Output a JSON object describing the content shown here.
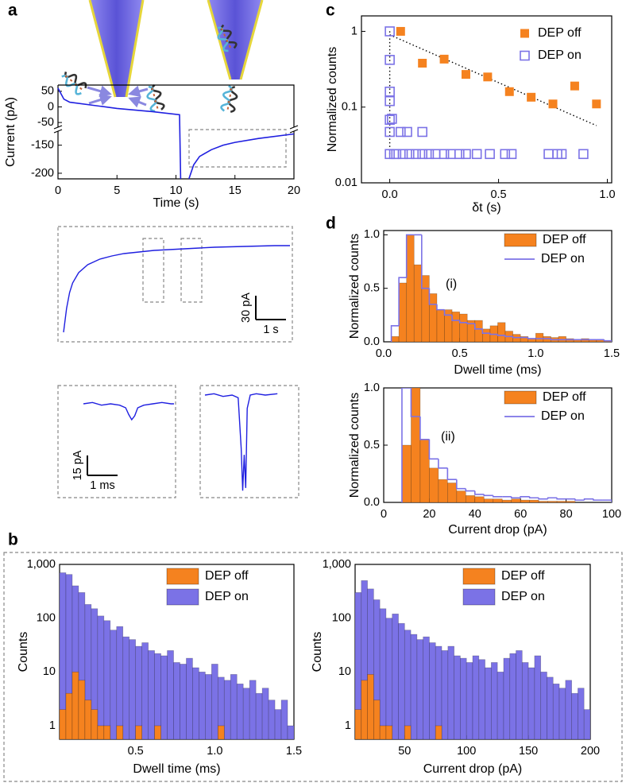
{
  "chart_data": [
    {
      "type": "line",
      "panel": "a",
      "xlabel": "Time (s)",
      "ylabel": "Current (pA)",
      "xlim": [
        0,
        20
      ],
      "xticks": [
        0,
        5,
        10,
        15,
        20
      ],
      "ylim": [
        -210,
        70
      ],
      "ybreak": [
        -125,
        -65
      ],
      "yticks": [
        50,
        0,
        -50,
        -150,
        -200
      ],
      "color": "#1f1fe0",
      "x": [
        0,
        0.5,
        1,
        3,
        5,
        8,
        10.3,
        10.4,
        10.8,
        11.1,
        11.5,
        12,
        13,
        14,
        15,
        17,
        20
      ],
      "values": [
        60,
        25,
        15,
        5,
        -5,
        -15,
        -25,
        -210,
        null,
        -210,
        -185,
        -170,
        -158,
        -150,
        -145,
        -138,
        -130
      ]
    },
    {
      "type": "trace",
      "color": "#1f1fe0",
      "x": [
        0,
        0.1,
        0.2,
        0.3,
        0.5,
        0.8,
        1.2,
        1.6,
        2.0,
        2.5,
        3,
        3.5,
        4,
        4.5,
        5,
        5.5,
        6,
        6.5,
        7,
        7.5
      ],
      "values": [
        -100,
        -70,
        -50,
        -38,
        -25,
        -15,
        -8,
        -4,
        -1,
        1,
        3,
        4,
        5,
        6,
        7,
        7.5,
        8,
        8.5,
        9,
        9
      ],
      "yscalebar": {
        "value": 30,
        "label": "30 pA"
      },
      "xscalebar": {
        "value": 1,
        "label": "1 s"
      }
    },
    {
      "type": "trace",
      "color": "#1f1fe0",
      "x": [
        0,
        0.3,
        0.6,
        0.9,
        1.2,
        1.4,
        1.5,
        1.6,
        1.7,
        1.8,
        2.0,
        2.3,
        2.6,
        2.9,
        3.0
      ],
      "values": [
        0,
        1,
        -1,
        0,
        -1,
        -3,
        -8,
        -12,
        -9,
        -3,
        -1,
        0,
        1,
        0,
        0
      ],
      "yscalebar": {
        "value": 15,
        "label": "15 pA"
      },
      "xscalebar": {
        "value": 1,
        "label": "1 ms"
      }
    },
    {
      "type": "trace",
      "color": "#1f1fe0",
      "x": [
        0,
        0.3,
        0.6,
        0.9,
        1.1,
        1.2,
        1.25,
        1.3,
        1.35,
        1.4,
        1.5,
        1.7,
        2.0,
        2.4
      ],
      "values": [
        0,
        1,
        -1,
        0,
        -2,
        -40,
        -72,
        -45,
        -70,
        -10,
        0,
        1,
        0,
        1
      ]
    },
    {
      "type": "scatter",
      "panel": "c",
      "xlabel": "δt (s)",
      "ylabel": "Normalized counts",
      "xlim": [
        -0.13,
        1.02
      ],
      "xticks": [
        {
          "value": 0,
          "label": "0.0"
        },
        0.5,
        {
          "value": 1,
          "label": "1.0"
        }
      ],
      "ylim": [
        0.01,
        1.6
      ],
      "yscale": "log",
      "yticks": [
        0.01,
        0.1,
        1
      ],
      "legend": "upper right",
      "series": [
        {
          "name": "DEP off",
          "color": "#f5821f",
          "marker": "filled",
          "x": [
            0.05,
            0.15,
            0.25,
            0.35,
            0.45,
            0.55,
            0.65,
            0.75,
            0.85,
            0.95
          ],
          "values": [
            1.0,
            0.38,
            0.43,
            0.27,
            0.25,
            0.16,
            0.135,
            0.11,
            0.19,
            0.11
          ]
        },
        {
          "name": "DEP on",
          "color": "#7b72e6",
          "marker": "open",
          "x": [
            0,
            0,
            0,
            0,
            0,
            0,
            0,
            0.02,
            0.01,
            0.05,
            0.08,
            0.15,
            0.03,
            0.06,
            0.09,
            0.12,
            0.15,
            0.18,
            0.21,
            0.25,
            0.28,
            0.32,
            0.35,
            0.4,
            0.46,
            0.53,
            0.56,
            0.73,
            0.77,
            0.79,
            0.89
          ],
          "values": [
            1,
            0.42,
            0.16,
            0.12,
            0.068,
            0.047,
            0.024,
            0.024,
            0.07,
            0.047,
            0.047,
            0.047,
            0.024,
            0.024,
            0.024,
            0.024,
            0.024,
            0.024,
            0.024,
            0.024,
            0.024,
            0.024,
            0.024,
            0.024,
            0.024,
            0.024,
            0.024,
            0.024,
            0.024,
            0.024,
            0.024
          ]
        }
      ],
      "fit_lines": [
        {
          "x": [
            0,
            0.95
          ],
          "values": [
            0.9,
            0.057
          ]
        },
        {
          "x": [
            0,
            0
          ],
          "values": [
            1,
            0.024
          ]
        }
      ]
    },
    {
      "type": "histogram",
      "panel": "d",
      "annotation": "(i)",
      "xlabel": "Dwell time (ms)",
      "ylabel": "Normalized counts",
      "xlim": [
        0,
        1.5
      ],
      "xticks": [
        {
          "value": 0,
          "label": "0.0"
        },
        0.5,
        {
          "value": 1,
          "label": "1.0"
        },
        1.5
      ],
      "ylim": [
        0,
        1.04
      ],
      "yticks": [
        {
          "value": 0,
          "label": "0.0"
        },
        0.5,
        {
          "value": 1,
          "label": "1.0"
        }
      ],
      "legend": "upper right",
      "bins": [
        0.05,
        0.1,
        0.15,
        0.2,
        0.25,
        0.3,
        0.35,
        0.4,
        0.45,
        0.5,
        0.55,
        0.6,
        0.65,
        0.7,
        0.75,
        0.8,
        0.85,
        0.9,
        0.95,
        1.0,
        1.05,
        1.1,
        1.15,
        1.2,
        1.25,
        1.3,
        1.35,
        1.4,
        1.45,
        1.5
      ],
      "series": [
        {
          "name": "DEP off",
          "color": "#f5821f",
          "style": "bar",
          "values": [
            0.05,
            0.55,
            1.0,
            0.72,
            0.62,
            0.45,
            0.3,
            0.3,
            0.28,
            0.26,
            0.2,
            0.2,
            0.12,
            0.15,
            0.18,
            0.1,
            0.07,
            0.05,
            0.03,
            0.08,
            0.05,
            0.04,
            0.05,
            0.03,
            0.02,
            0.03,
            0.02,
            0.02,
            0.01
          ]
        },
        {
          "name": "DEP on",
          "color": "#7b72e6",
          "style": "step",
          "values": [
            0.15,
            0.6,
            1.0,
            1.0,
            0.5,
            0.35,
            0.3,
            0.25,
            0.2,
            0.18,
            0.17,
            0.12,
            0.08,
            0.07,
            0.06,
            0.05,
            0.04,
            0.04,
            0.03,
            0.03,
            0.03,
            0.02,
            0.02,
            0.02,
            0.02,
            0.02,
            0.02,
            0.02,
            0.01
          ]
        }
      ]
    },
    {
      "type": "histogram",
      "annotation": "(ii)",
      "xlabel": "Current drop (pA)",
      "ylabel": "Normalized counts",
      "xlim": [
        0,
        100
      ],
      "xticks": [
        0,
        20,
        40,
        60,
        80,
        100
      ],
      "ylim": [
        0,
        1
      ],
      "yticks": [
        {
          "value": 0,
          "label": "0.0"
        },
        0.5,
        {
          "value": 1,
          "label": "1.0"
        }
      ],
      "legend": "upper right",
      "bins": [
        8,
        12,
        16,
        20,
        24,
        28,
        32,
        36,
        40,
        44,
        48,
        52,
        56,
        60,
        64,
        68,
        72,
        76,
        80,
        84,
        88,
        92,
        96,
        100
      ],
      "series": [
        {
          "name": "DEP off",
          "color": "#f5821f",
          "style": "bar",
          "values": [
            0.5,
            1.0,
            0.55,
            0.3,
            0.2,
            0.17,
            0.1,
            0.06,
            0.05,
            0.03,
            0.03,
            0.02,
            0.03,
            0.02,
            0.02,
            0.01,
            0.01,
            0.01,
            0.01,
            0,
            0,
            0,
            0
          ]
        },
        {
          "name": "DEP on",
          "color": "#7b72e6",
          "style": "step",
          "values": [
            1.0,
            0.75,
            0.55,
            0.38,
            0.3,
            0.2,
            0.12,
            0.1,
            0.07,
            0.06,
            0.05,
            0.05,
            0.04,
            0.05,
            0.04,
            0.03,
            0.04,
            0.03,
            0.03,
            0.02,
            0.03,
            0.02,
            0.02
          ]
        }
      ]
    },
    {
      "type": "histogram",
      "panel": "b",
      "xlabel": "Dwell time (ms)",
      "ylabel": "Counts",
      "xlim": [
        0.02,
        1.5
      ],
      "xticks": [
        0.5,
        {
          "value": 1,
          "label": "1.0"
        },
        1.5
      ],
      "ylim": [
        0.56,
        1000
      ],
      "yscale": "log",
      "yticks": [
        1,
        10,
        100,
        {
          "value": 1000,
          "label": "1,000"
        }
      ],
      "legend": "upper right",
      "bins": [
        0.02,
        0.06,
        0.1,
        0.14,
        0.18,
        0.22,
        0.26,
        0.3,
        0.34,
        0.38,
        0.42,
        0.46,
        0.5,
        0.54,
        0.58,
        0.62,
        0.66,
        0.7,
        0.74,
        0.78,
        0.82,
        0.86,
        0.9,
        0.94,
        0.98,
        1.02,
        1.06,
        1.1,
        1.14,
        1.18,
        1.22,
        1.26,
        1.3,
        1.34,
        1.38,
        1.42,
        1.46,
        1.5
      ],
      "series": [
        {
          "name": "DEP off",
          "color": "#f5821f",
          "style": "bar",
          "values": [
            2,
            4,
            10,
            7,
            3,
            2,
            1,
            1,
            0,
            1,
            0,
            0,
            1,
            0,
            0,
            1,
            0,
            0,
            0,
            0,
            0,
            0,
            0,
            0,
            0,
            1,
            0,
            0,
            0,
            0,
            0,
            0,
            0,
            0,
            0,
            0,
            0
          ]
        },
        {
          "name": "DEP on",
          "color": "#7b72e6",
          "style": "bar",
          "values": [
            700,
            650,
            400,
            300,
            180,
            150,
            110,
            90,
            60,
            70,
            45,
            40,
            30,
            35,
            25,
            22,
            20,
            25,
            15,
            14,
            18,
            12,
            10,
            9,
            14,
            8,
            7,
            9,
            6,
            5,
            7,
            4,
            5,
            3,
            2,
            3,
            1
          ]
        }
      ]
    },
    {
      "type": "histogram",
      "xlabel": "Current drop (pA)",
      "ylabel": "Counts",
      "xlim": [
        10,
        200
      ],
      "xticks": [
        50,
        100,
        150,
        200
      ],
      "ylim": [
        0.56,
        1000
      ],
      "yscale": "log",
      "yticks": [
        1,
        10,
        100,
        {
          "value": 1000,
          "label": "1,000"
        }
      ],
      "legend": "upper right",
      "bins": [
        10,
        15,
        20,
        25,
        30,
        35,
        40,
        45,
        50,
        55,
        60,
        65,
        70,
        75,
        80,
        85,
        90,
        95,
        100,
        105,
        110,
        115,
        120,
        125,
        130,
        135,
        140,
        145,
        150,
        155,
        160,
        165,
        170,
        175,
        180,
        185,
        190,
        195,
        200
      ],
      "series": [
        {
          "name": "DEP off",
          "color": "#f5821f",
          "style": "bar",
          "values": [
            2,
            7,
            9,
            3,
            1,
            1,
            0,
            0,
            1,
            0,
            0,
            0,
            0,
            1,
            0,
            0,
            0,
            0,
            0,
            0,
            0,
            0,
            0,
            0,
            0,
            0,
            0,
            0,
            0,
            0,
            0,
            0,
            0,
            0,
            0,
            0,
            0,
            0
          ]
        },
        {
          "name": "DEP on",
          "color": "#7b72e6",
          "style": "bar",
          "values": [
            300,
            500,
            350,
            220,
            150,
            100,
            120,
            80,
            60,
            50,
            40,
            45,
            35,
            30,
            25,
            30,
            20,
            18,
            15,
            20,
            17,
            12,
            15,
            10,
            18,
            22,
            25,
            15,
            12,
            20,
            10,
            8,
            6,
            5,
            7,
            4,
            5,
            2
          ]
        }
      ]
    }
  ]
}
